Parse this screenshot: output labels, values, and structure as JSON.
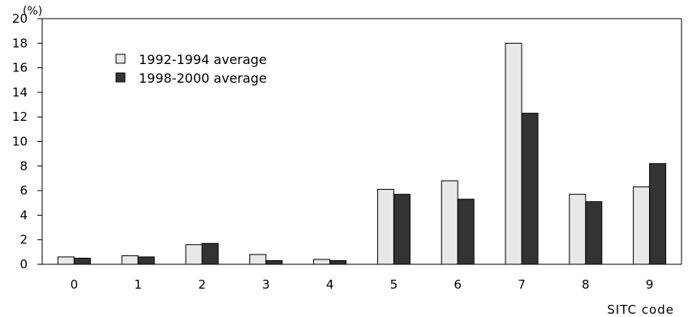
{
  "chart_data": {
    "type": "bar",
    "categories": [
      "0",
      "1",
      "2",
      "3",
      "4",
      "5",
      "6",
      "7",
      "8",
      "9"
    ],
    "series": [
      {
        "name": "1992-1994 average",
        "color": "#e8e8e8",
        "values": [
          0.6,
          0.7,
          1.6,
          0.8,
          0.4,
          6.1,
          6.8,
          18.0,
          5.7,
          6.3
        ]
      },
      {
        "name": "1998-2000 average",
        "color": "#333333",
        "values": [
          0.5,
          0.6,
          1.7,
          0.3,
          0.3,
          5.7,
          5.3,
          12.3,
          5.1,
          8.2
        ]
      }
    ],
    "ylim": [
      0,
      20
    ],
    "yticks": [
      "0",
      "2",
      "4",
      "6",
      "8",
      "10",
      "12",
      "14",
      "16",
      "18",
      "20"
    ],
    "yunit": "(%)",
    "xlabel": "SITC code",
    "legend_position": "top-left",
    "grid": false
  }
}
